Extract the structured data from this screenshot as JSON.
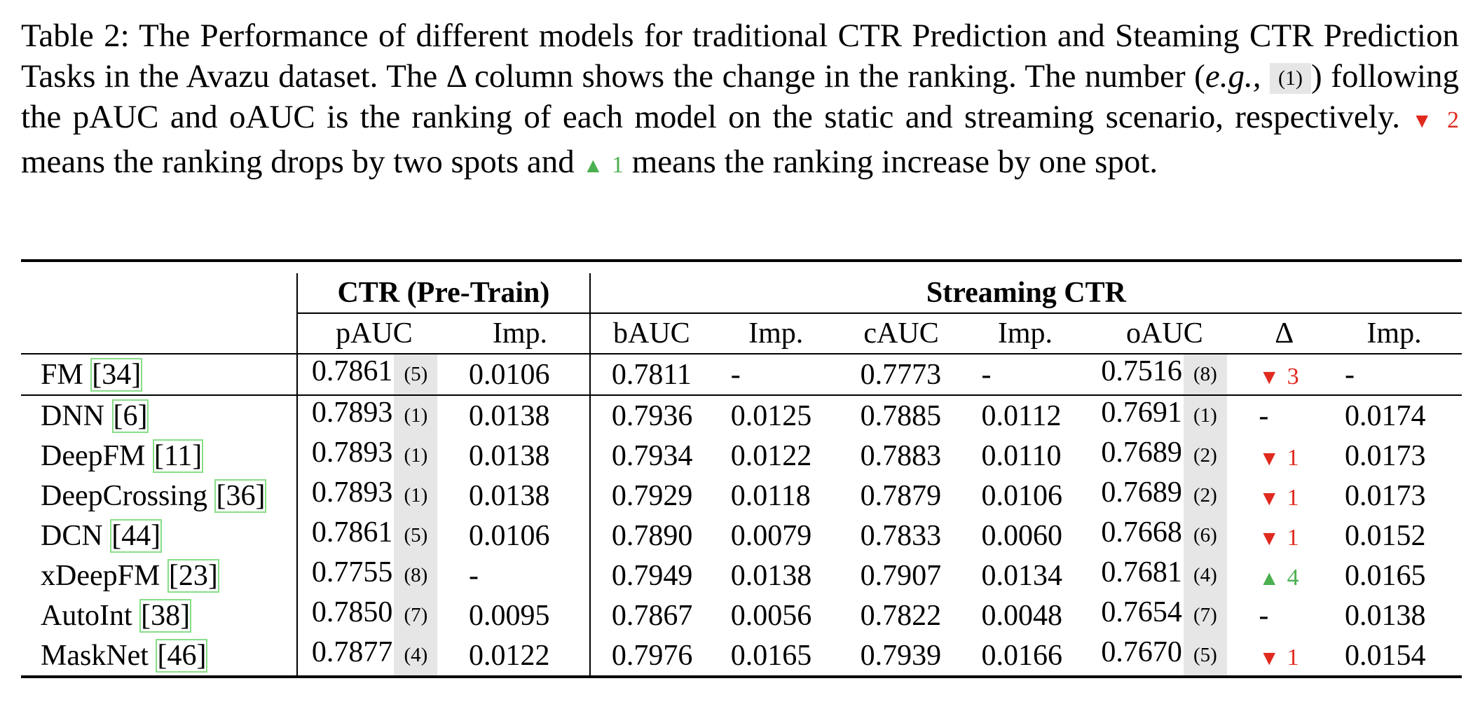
{
  "caption": {
    "part1": "Table 2: The Performance of different models for traditional CTR Prediction and Steaming CTR Prediction Tasks in the Avazu dataset. The Δ column shows the change in the ranking. The number (",
    "eg": "e.g.,",
    "example_rank": "(1)",
    "part2": ") following the pAUC and oAUC is the ranking of each model on the static and streaming scenario, respectively.",
    "drop_symbol": "▼",
    "drop_value": "2",
    "part3": "means the ranking drops by two spots and",
    "rise_symbol": "▲",
    "rise_value": "1",
    "part4": "means the ranking increase by one spot."
  },
  "table": {
    "group_pretrain": "CTR (Pre-Train)",
    "group_streaming": "Streaming CTR",
    "columns": [
      "pAUC",
      "Imp.",
      "bAUC",
      "Imp.",
      "cAUC",
      "Imp.",
      "oAUC",
      "Δ",
      "Imp."
    ],
    "rows": [
      {
        "model": "FM",
        "cite": "[34]",
        "pauc": "0.7861",
        "prank": "(5)",
        "imp1": "0.0106",
        "bauc": "0.7811",
        "imp2": "-",
        "cauc": "0.7773",
        "imp3": "-",
        "oauc": "0.7516",
        "orank": "(8)",
        "delta_sym": "▼",
        "delta_val": "3",
        "delta_dir": "down",
        "imp4": "-"
      },
      {
        "model": "DNN",
        "cite": "[6]",
        "pauc": "0.7893",
        "prank": "(1)",
        "imp1": "0.0138",
        "bauc": "0.7936",
        "imp2": "0.0125",
        "cauc": "0.7885",
        "imp3": "0.0112",
        "oauc": "0.7691",
        "orank": "(1)",
        "delta_sym": "",
        "delta_val": "-",
        "delta_dir": "none",
        "imp4": "0.0174"
      },
      {
        "model": "DeepFM",
        "cite": "[11]",
        "pauc": "0.7893",
        "prank": "(1)",
        "imp1": "0.0138",
        "bauc": "0.7934",
        "imp2": "0.0122",
        "cauc": "0.7883",
        "imp3": "0.0110",
        "oauc": "0.7689",
        "orank": "(2)",
        "delta_sym": "▼",
        "delta_val": "1",
        "delta_dir": "down",
        "imp4": "0.0173"
      },
      {
        "model": "DeepCrossing",
        "cite": "[36]",
        "pauc": "0.7893",
        "prank": "(1)",
        "imp1": "0.0138",
        "bauc": "0.7929",
        "imp2": "0.0118",
        "cauc": "0.7879",
        "imp3": "0.0106",
        "oauc": "0.7689",
        "orank": "(2)",
        "delta_sym": "▼",
        "delta_val": "1",
        "delta_dir": "down",
        "imp4": "0.0173"
      },
      {
        "model": "DCN",
        "cite": "[44]",
        "pauc": "0.7861",
        "prank": "(5)",
        "imp1": "0.0106",
        "bauc": "0.7890",
        "imp2": "0.0079",
        "cauc": "0.7833",
        "imp3": "0.0060",
        "oauc": "0.7668",
        "orank": "(6)",
        "delta_sym": "▼",
        "delta_val": "1",
        "delta_dir": "down",
        "imp4": "0.0152"
      },
      {
        "model": "xDeepFM",
        "cite": "[23]",
        "pauc": "0.7755",
        "prank": "(8)",
        "imp1": "-",
        "bauc": "0.7949",
        "imp2": "0.0138",
        "cauc": "0.7907",
        "imp3": "0.0134",
        "oauc": "0.7681",
        "orank": "(4)",
        "delta_sym": "▲",
        "delta_val": "4",
        "delta_dir": "up",
        "imp4": "0.0165"
      },
      {
        "model": "AutoInt",
        "cite": "[38]",
        "pauc": "0.7850",
        "prank": "(7)",
        "imp1": "0.0095",
        "bauc": "0.7867",
        "imp2": "0.0056",
        "cauc": "0.7822",
        "imp3": "0.0048",
        "oauc": "0.7654",
        "orank": "(7)",
        "delta_sym": "",
        "delta_val": "-",
        "delta_dir": "none",
        "imp4": "0.0138"
      },
      {
        "model": "MaskNet",
        "cite": "[46]",
        "pauc": "0.7877",
        "prank": "(4)",
        "imp1": "0.0122",
        "bauc": "0.7976",
        "imp2": "0.0165",
        "cauc": "0.7939",
        "imp3": "0.0166",
        "oauc": "0.7670",
        "orank": "(5)",
        "delta_sym": "▼",
        "delta_val": "1",
        "delta_dir": "down",
        "imp4": "0.0154"
      }
    ]
  },
  "colors": {
    "down": "#e02a1e",
    "up": "#4caf50",
    "rank_bg": "#e6e6e6",
    "cite_box": "#88dd88"
  }
}
